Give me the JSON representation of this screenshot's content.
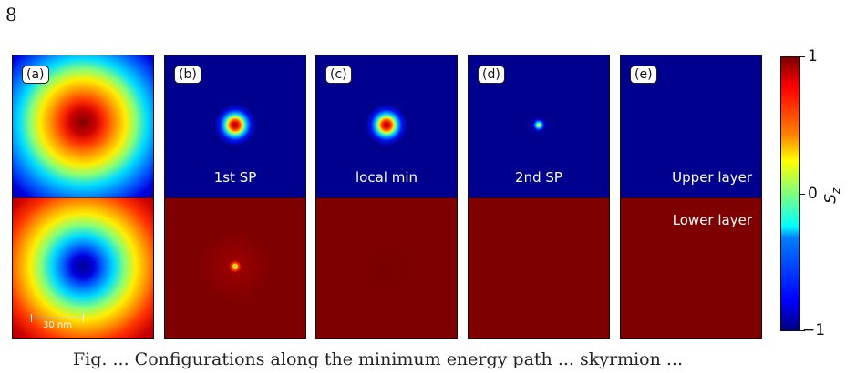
{
  "page_number": "8",
  "panels": [
    {
      "tag": "(a)",
      "mid_label": "",
      "lower_label": "",
      "scalebar": "30 nm"
    },
    {
      "tag": "(b)",
      "mid_label": "1st SP",
      "lower_label": ""
    },
    {
      "tag": "(c)",
      "mid_label": "local min",
      "lower_label": ""
    },
    {
      "tag": "(d)",
      "mid_label": "2nd SP",
      "lower_label": ""
    },
    {
      "tag": "(e)",
      "mid_label": "Upper layer",
      "lower_label": "Lower layer"
    }
  ],
  "colorbar": {
    "label": "S",
    "label_sub": "z",
    "ticks": [
      "1",
      "0",
      "−1"
    ],
    "colormap": "jet",
    "range": [
      -1,
      1
    ]
  },
  "caption_fragment": "Fig. ... Configurations along the minimum energy path ... skyrmion ...",
  "colors": {
    "dark_blue": "#00007f",
    "dark_red": "#7f0000",
    "text_white": "#ffffff"
  }
}
